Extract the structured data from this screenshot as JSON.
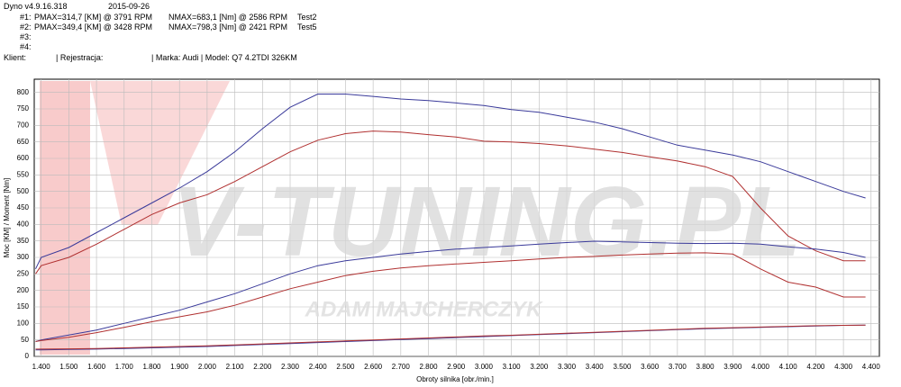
{
  "header": {
    "app": "Dyno v4.9.16.318",
    "date": "2015-09-26",
    "tests": [
      {
        "label": "#1:",
        "pmax": "PMAX=314,7 [KM] @ 3791 RPM",
        "nmax": "NMAX=683,1 [Nm] @ 2586 RPM",
        "name": "Test2"
      },
      {
        "label": "#2:",
        "pmax": "PMAX=349,4 [KM] @ 3428 RPM",
        "nmax": "NMAX=798,3 [Nm] @ 2421 RPM",
        "name": "Test5"
      },
      {
        "label": "#3:"
      },
      {
        "label": "#4:"
      }
    ],
    "client": "Klient:",
    "registration": "| Rejestracja:",
    "vehicle": "| Marka: Audi | Model: Q7 4.2TDI 326KM"
  },
  "chart_data": {
    "type": "line",
    "xlabel": "Obroty silnika [obr./min.]",
    "ylabel": "Moc [KM] / Moment [Nm]",
    "watermark": "V-TUNING.PL",
    "watermark_sub": "ADAM MAJCHERCZYK",
    "grid": true,
    "xlim": [
      1375,
      4430
    ],
    "ylim": [
      0,
      840
    ],
    "xticks": [
      {
        "value": 1400,
        "label": "1.400"
      },
      {
        "value": 1500,
        "label": "1.500"
      },
      {
        "value": 1600,
        "label": "1.600"
      },
      {
        "value": 1700,
        "label": "1.700"
      },
      {
        "value": 1800,
        "label": "1.800"
      },
      {
        "value": 1900,
        "label": "1.900"
      },
      {
        "value": 2000,
        "label": "2.000"
      },
      {
        "value": 2100,
        "label": "2.100"
      },
      {
        "value": 2200,
        "label": "2.200"
      },
      {
        "value": 2300,
        "label": "2.300"
      },
      {
        "value": 2400,
        "label": "2.400"
      },
      {
        "value": 2500,
        "label": "2.500"
      },
      {
        "value": 2600,
        "label": "2.600"
      },
      {
        "value": 2700,
        "label": "2.700"
      },
      {
        "value": 2800,
        "label": "2.800"
      },
      {
        "value": 2900,
        "label": "2.900"
      },
      {
        "value": 3000,
        "label": "3.000"
      },
      {
        "value": 3100,
        "label": "3.100"
      },
      {
        "value": 3200,
        "label": "3.200"
      },
      {
        "value": 3300,
        "label": "3.300"
      },
      {
        "value": 3400,
        "label": "3.400"
      },
      {
        "value": 3500,
        "label": "3.500"
      },
      {
        "value": 3600,
        "label": "3.600"
      },
      {
        "value": 3700,
        "label": "3.700"
      },
      {
        "value": 3800,
        "label": "3.800"
      },
      {
        "value": 3900,
        "label": "3.900"
      },
      {
        "value": 4000,
        "label": "4.000"
      },
      {
        "value": 4100,
        "label": "4.100"
      },
      {
        "value": 4200,
        "label": "4.200"
      },
      {
        "value": 4300,
        "label": "4.300"
      },
      {
        "value": 4400,
        "label": "4.400"
      }
    ],
    "yticks": [
      0,
      50,
      100,
      150,
      200,
      250,
      300,
      350,
      400,
      450,
      500,
      550,
      600,
      650,
      700,
      750,
      800
    ],
    "x": [
      1380,
      1400,
      1500,
      1600,
      1700,
      1800,
      1900,
      2000,
      2100,
      2200,
      2300,
      2400,
      2500,
      2600,
      2700,
      2800,
      2900,
      3000,
      3100,
      3200,
      3300,
      3400,
      3500,
      3600,
      3700,
      3800,
      3900,
      4000,
      4100,
      4200,
      4300,
      4380
    ],
    "series": [
      {
        "color": "#3a3a9a",
        "values": [
          265,
          300,
          330,
          375,
          420,
          465,
          510,
          560,
          620,
          690,
          755,
          795,
          795,
          788,
          780,
          775,
          768,
          760,
          748,
          740,
          725,
          710,
          690,
          665,
          640,
          625,
          610,
          590,
          560,
          530,
          500,
          480
        ]
      },
      {
        "color": "#b03030",
        "values": [
          250,
          275,
          300,
          340,
          385,
          430,
          465,
          490,
          530,
          575,
          620,
          655,
          675,
          683,
          680,
          672,
          665,
          652,
          650,
          645,
          638,
          628,
          618,
          605,
          592,
          575,
          545,
          450,
          365,
          320,
          290,
          290
        ]
      },
      {
        "color": "#3a3a9a",
        "values": [
          45,
          50,
          65,
          80,
          100,
          120,
          140,
          165,
          190,
          220,
          250,
          275,
          290,
          300,
          310,
          318,
          325,
          330,
          335,
          340,
          345,
          349,
          347,
          345,
          343,
          342,
          343,
          340,
          332,
          325,
          315,
          300
        ]
      },
      {
        "color": "#b03030",
        "values": [
          45,
          48,
          58,
          72,
          88,
          105,
          120,
          135,
          155,
          180,
          205,
          225,
          245,
          258,
          268,
          275,
          280,
          285,
          290,
          295,
          300,
          303,
          307,
          310,
          313,
          314,
          310,
          265,
          225,
          210,
          180,
          180
        ]
      },
      {
        "color": "#3a3a9a",
        "values": [
          20,
          20,
          21,
          22,
          24,
          26,
          28,
          30,
          33,
          36,
          39,
          42,
          45,
          48,
          51,
          54,
          57,
          60,
          63,
          66,
          69,
          72,
          75,
          78,
          81,
          84,
          86,
          88,
          90,
          92,
          94,
          95
        ]
      },
      {
        "color": "#b03030",
        "values": [
          22,
          22,
          23,
          24,
          26,
          28,
          30,
          32,
          35,
          38,
          41,
          44,
          47,
          50,
          53,
          56,
          59,
          62,
          64,
          67,
          70,
          73,
          76,
          79,
          82,
          85,
          87,
          89,
          91,
          93,
          94,
          95
        ]
      }
    ]
  }
}
